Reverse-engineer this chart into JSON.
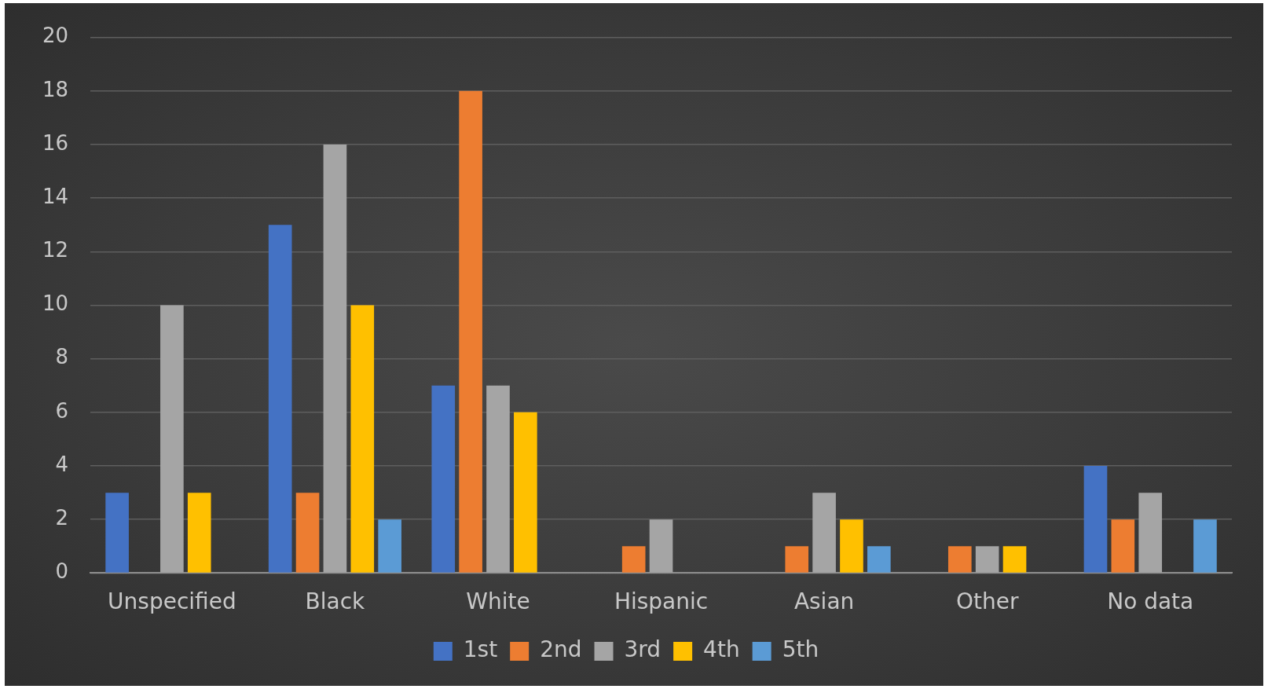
{
  "chart_data": {
    "type": "bar",
    "categories": [
      "Unspecified",
      "Black",
      "White",
      "Hispanic",
      "Asian",
      "Other",
      "No data"
    ],
    "series": [
      {
        "name": "1st",
        "color": "#4472c4",
        "values": [
          3,
          13,
          7,
          0,
          0,
          0,
          4
        ]
      },
      {
        "name": "2nd",
        "color": "#ed7d31",
        "values": [
          0,
          3,
          18,
          1,
          1,
          1,
          2
        ]
      },
      {
        "name": "3rd",
        "color": "#a5a5a5",
        "values": [
          10,
          16,
          7,
          2,
          3,
          1,
          3
        ]
      },
      {
        "name": "4th",
        "color": "#ffc000",
        "values": [
          3,
          10,
          6,
          0,
          2,
          1,
          0
        ]
      },
      {
        "name": "5th",
        "color": "#5b9bd5",
        "values": [
          0,
          2,
          0,
          0,
          1,
          0,
          2
        ]
      }
    ],
    "ylim": [
      0,
      20
    ],
    "yticks": [
      0,
      2,
      4,
      6,
      8,
      10,
      12,
      14,
      16,
      18,
      20
    ],
    "grid": "y",
    "legend": "bottom"
  }
}
